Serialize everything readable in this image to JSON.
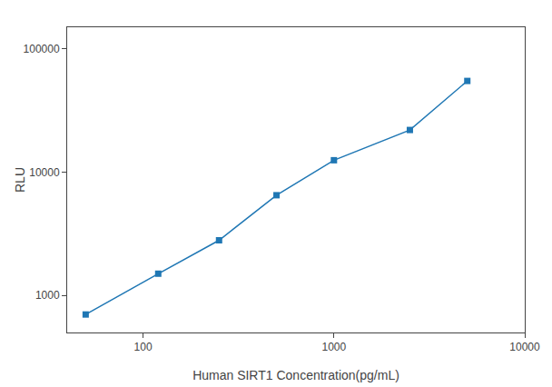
{
  "chart_data": {
    "type": "line",
    "x": [
      50,
      120,
      250,
      500,
      1000,
      2500,
      5000
    ],
    "values": [
      700,
      1500,
      2800,
      6500,
      12500,
      22000,
      55000
    ],
    "xlabel": "Human SIRT1 Concentration(pg/mL)",
    "ylabel": "RLU",
    "xlim": [
      40,
      10000
    ],
    "ylim": [
      500,
      150000
    ],
    "xticks": [
      100,
      1000,
      10000
    ],
    "yticks": [
      1000,
      10000,
      100000
    ],
    "log": true,
    "grid": false,
    "marker": "square"
  }
}
